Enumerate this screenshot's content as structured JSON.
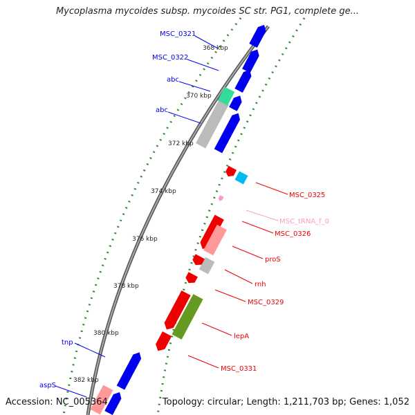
{
  "title": "Mycoplasma mycoides subsp. mycoides SC str. PG1, complete ge...",
  "footer": {
    "accession": "Accession: NC_005364",
    "summary": "Topology: circular; Length: 1,211,703 bp; Genes: 1,052"
  },
  "ticks": [
    "368 kbp",
    "370 kbp",
    "372 kbp",
    "374 kbp",
    "376 kbp",
    "378 kbp",
    "380 kbp",
    "382 kbp"
  ],
  "colors": {
    "blue": "#0000ee",
    "red": "#ee0000",
    "pink": "#ff9999",
    "light_pink": "#ff99cc",
    "cyan": "#00bbee",
    "green": "#33dd99",
    "olive": "#669922",
    "gray": "#bbbbbb",
    "backbone": "#888888",
    "tick_green": "#2e8b2e"
  },
  "labels": [
    {
      "name": "MSC_0321",
      "color": "blue"
    },
    {
      "name": "MSC_0322",
      "color": "blue"
    },
    {
      "name": "abc",
      "color": "blue"
    },
    {
      "name": "abc",
      "color": "blue"
    },
    {
      "name": "MSC_0325",
      "color": "red"
    },
    {
      "name": "MSC_tRNA_f_0",
      "color": "light_pink"
    },
    {
      "name": "MSC_0326",
      "color": "red"
    },
    {
      "name": "proS",
      "color": "red"
    },
    {
      "name": "rnh",
      "color": "red"
    },
    {
      "name": "MSC_0329",
      "color": "red"
    },
    {
      "name": "lepA",
      "color": "red"
    },
    {
      "name": "MSC_0331",
      "color": "red"
    },
    {
      "name": "tnp",
      "color": "blue"
    },
    {
      "name": "aspS",
      "color": "blue"
    }
  ]
}
